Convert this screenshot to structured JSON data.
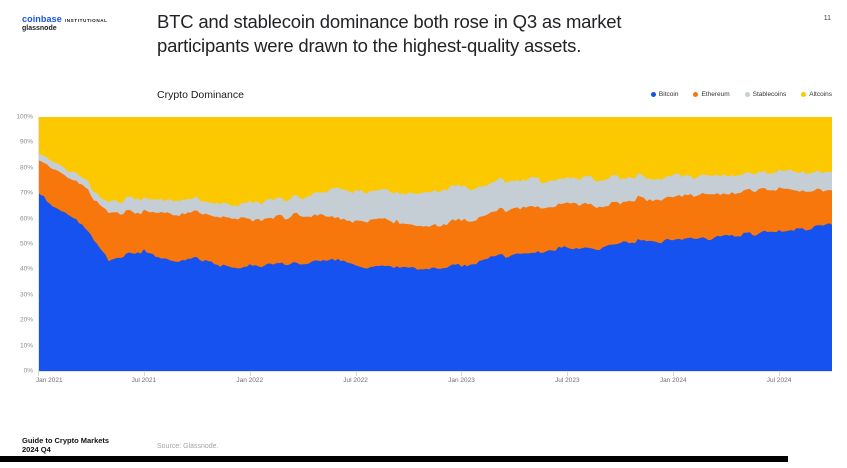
{
  "page": {
    "number": "11",
    "background": "#ffffff"
  },
  "brand": {
    "wordmark": "coinbase",
    "suffix": "INSTITUTIONAL",
    "subbrand": "glassnode",
    "wordmark_color": "#1652f0"
  },
  "header": {
    "title_line1": "BTC and stablecoin dominance both rose in Q3 as market",
    "title_line2": "participants were drawn to the highest-quality assets."
  },
  "chart_data": {
    "type": "area",
    "stacked": true,
    "title": "Crypto Dominance",
    "unit": "%",
    "ylim": [
      0,
      100
    ],
    "grid": false,
    "legend_position": "top-right",
    "y_tick_labels": [
      "100%",
      "90%",
      "80%",
      "70%",
      "60%",
      "50%",
      "40%",
      "30%",
      "20%",
      "10%",
      "0%"
    ],
    "x_tick_labels": [
      "Jan 2021",
      "Jul 2021",
      "Jan 2022",
      "Jul 2022",
      "Jan 2023",
      "Jul 2023",
      "Jan 2024",
      "Jul 2024"
    ],
    "x_tick_month_offsets": [
      0,
      6,
      12,
      18,
      24,
      30,
      36,
      42
    ],
    "months": [
      "2021-01",
      "2021-02",
      "2021-03",
      "2021-04",
      "2021-05",
      "2021-06",
      "2021-07",
      "2021-08",
      "2021-09",
      "2021-10",
      "2021-11",
      "2021-12",
      "2022-01",
      "2022-02",
      "2022-03",
      "2022-04",
      "2022-05",
      "2022-06",
      "2022-07",
      "2022-08",
      "2022-09",
      "2022-10",
      "2022-11",
      "2022-12",
      "2023-01",
      "2023-02",
      "2023-03",
      "2023-04",
      "2023-05",
      "2023-06",
      "2023-07",
      "2023-08",
      "2023-09",
      "2023-10",
      "2023-11",
      "2023-12",
      "2024-01",
      "2024-02",
      "2024-03",
      "2024-04",
      "2024-05",
      "2024-06",
      "2024-07",
      "2024-08",
      "2024-09",
      "2024-10"
    ],
    "series": [
      {
        "name": "Bitcoin",
        "color": "#1652f0",
        "values": [
          70,
          64,
          60,
          54,
          44,
          46,
          47,
          44,
          43,
          45,
          42,
          40,
          41,
          42,
          42.5,
          42,
          44,
          43.5,
          42,
          41,
          41,
          41,
          40,
          40.5,
          42,
          43,
          45,
          46,
          46,
          48,
          49,
          48.5,
          48,
          50,
          51,
          51,
          51.5,
          52,
          52,
          53.5,
          53.5,
          54.5,
          55,
          56,
          56.5,
          57.5
        ]
      },
      {
        "name": "Ethereum",
        "color": "#f7770c",
        "values": [
          13,
          15,
          14.5,
          16,
          19,
          17,
          16,
          18,
          18,
          18,
          19,
          20,
          18.5,
          18,
          18.5,
          19,
          18,
          16,
          17,
          18.5,
          17.5,
          17.5,
          17,
          17,
          17.5,
          17.5,
          18,
          18.5,
          18,
          17.5,
          17.5,
          17,
          16.5,
          16,
          16.5,
          16.5,
          16.5,
          17,
          17.5,
          16.5,
          17,
          17,
          16.5,
          15,
          14,
          13.5
        ]
      },
      {
        "name": "Stablecoins",
        "color": "#c4ced4",
        "values": [
          2.5,
          2.5,
          3,
          3,
          4,
          5,
          5.5,
          5,
          5.5,
          5,
          5,
          5.5,
          6.5,
          7,
          7,
          7.5,
          9,
          11.5,
          11.5,
          11,
          12,
          12,
          13.5,
          14,
          13,
          12.5,
          11.5,
          11,
          11,
          10.5,
          10,
          10.5,
          10.5,
          10,
          9,
          8.5,
          8.5,
          7.5,
          7,
          7.5,
          7,
          7,
          7,
          7.5,
          7.5,
          7
        ]
      },
      {
        "name": "Altcoins",
        "color": "#fcc800",
        "values": [
          14.5,
          18.5,
          22.5,
          27,
          33,
          32,
          31.5,
          33,
          33.5,
          32,
          34,
          34.5,
          34,
          33,
          32,
          31.5,
          29,
          29,
          29.5,
          29.5,
          29.5,
          29.5,
          29.5,
          28.5,
          27.5,
          27,
          25.5,
          24.5,
          25,
          24,
          23.5,
          24,
          25,
          24,
          23.5,
          24,
          23.5,
          23.5,
          23.5,
          22.5,
          22.5,
          21.5,
          21.5,
          21.5,
          22,
          22
        ]
      }
    ]
  },
  "footer": {
    "left_line1": "Guide to Crypto Markets",
    "left_line2": "2024 Q4",
    "source": "Source: Glassnode."
  }
}
